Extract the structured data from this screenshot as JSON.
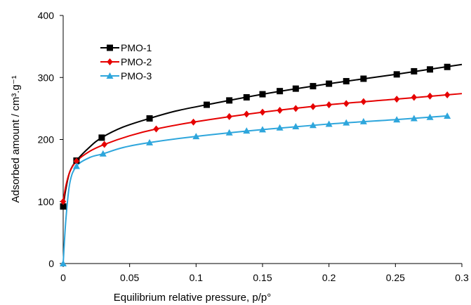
{
  "chart_data": {
    "type": "line",
    "title": "",
    "xlabel": "Equilibrium relative pressure, p/p°",
    "ylabel": "Adsorbed amount / cm³.g⁻¹",
    "xlim": [
      0,
      0.3
    ],
    "ylim": [
      0,
      400
    ],
    "xticks": [
      0,
      0.05,
      0.1,
      0.15,
      0.2,
      0.25,
      0.3
    ],
    "xtick_labels": [
      "0",
      "0.05",
      "0.1",
      "0.15",
      "0.2",
      "0.25",
      "0.3"
    ],
    "yticks": [
      0,
      100,
      200,
      300,
      400
    ],
    "ytick_labels": [
      "0",
      "100",
      "200",
      "300",
      "400"
    ],
    "grid": false,
    "legend_position": "top-left",
    "series": [
      {
        "name": "PMO-1",
        "color": "#000000",
        "marker": "square",
        "points": [
          [
            0,
            92
          ],
          [
            0.01,
            166
          ],
          [
            0.029,
            203
          ],
          [
            0.065,
            234
          ],
          [
            0.108,
            256
          ],
          [
            0.125,
            263
          ],
          [
            0.138,
            268
          ],
          [
            0.15,
            273
          ],
          [
            0.163,
            278
          ],
          [
            0.175,
            282
          ],
          [
            0.188,
            286
          ],
          [
            0.2,
            290
          ],
          [
            0.213,
            294
          ],
          [
            0.226,
            298
          ],
          [
            0.251,
            305
          ],
          [
            0.264,
            310
          ],
          [
            0.276,
            313
          ],
          [
            0.289,
            317
          ]
        ],
        "curve": [
          [
            0,
            92
          ],
          [
            0.002,
            120
          ],
          [
            0.005,
            148
          ],
          [
            0.01,
            166
          ],
          [
            0.02,
            188
          ],
          [
            0.029,
            203
          ],
          [
            0.045,
            220
          ],
          [
            0.065,
            234
          ],
          [
            0.085,
            246
          ],
          [
            0.108,
            256
          ],
          [
            0.15,
            273
          ],
          [
            0.2,
            290
          ],
          [
            0.25,
            305
          ],
          [
            0.3,
            321
          ]
        ]
      },
      {
        "name": "PMO-2",
        "color": "#e60000",
        "marker": "diamond",
        "points": [
          [
            0,
            100
          ],
          [
            0.01,
            165
          ],
          [
            0.031,
            192
          ],
          [
            0.07,
            217
          ],
          [
            0.098,
            228
          ],
          [
            0.125,
            237
          ],
          [
            0.138,
            241
          ],
          [
            0.15,
            244
          ],
          [
            0.163,
            247
          ],
          [
            0.175,
            250
          ],
          [
            0.188,
            253
          ],
          [
            0.2,
            256
          ],
          [
            0.213,
            258
          ],
          [
            0.226,
            261
          ],
          [
            0.251,
            265
          ],
          [
            0.264,
            268
          ],
          [
            0.276,
            270
          ],
          [
            0.289,
            272
          ]
        ],
        "curve": [
          [
            0,
            100
          ],
          [
            0.002,
            125
          ],
          [
            0.005,
            148
          ],
          [
            0.01,
            165
          ],
          [
            0.02,
            181
          ],
          [
            0.031,
            192
          ],
          [
            0.05,
            206
          ],
          [
            0.07,
            217
          ],
          [
            0.098,
            228
          ],
          [
            0.15,
            244
          ],
          [
            0.2,
            256
          ],
          [
            0.25,
            265
          ],
          [
            0.3,
            274
          ]
        ]
      },
      {
        "name": "PMO-3",
        "color": "#2ea6dc",
        "marker": "triangle",
        "points": [
          [
            0,
            0
          ],
          [
            0.01,
            157
          ],
          [
            0.03,
            177
          ],
          [
            0.065,
            195
          ],
          [
            0.1,
            205
          ],
          [
            0.125,
            211
          ],
          [
            0.138,
            214
          ],
          [
            0.15,
            216
          ],
          [
            0.163,
            219
          ],
          [
            0.175,
            221
          ],
          [
            0.188,
            223
          ],
          [
            0.2,
            225
          ],
          [
            0.213,
            227
          ],
          [
            0.226,
            229
          ],
          [
            0.251,
            232
          ],
          [
            0.264,
            234
          ],
          [
            0.276,
            236
          ],
          [
            0.289,
            238
          ]
        ],
        "curve": [
          [
            0,
            0
          ],
          [
            0.002,
            70
          ],
          [
            0.005,
            130
          ],
          [
            0.01,
            157
          ],
          [
            0.02,
            171
          ],
          [
            0.03,
            177
          ],
          [
            0.045,
            187
          ],
          [
            0.065,
            195
          ],
          [
            0.1,
            205
          ],
          [
            0.15,
            216
          ],
          [
            0.2,
            225
          ],
          [
            0.25,
            232
          ],
          [
            0.289,
            238
          ]
        ]
      }
    ]
  }
}
